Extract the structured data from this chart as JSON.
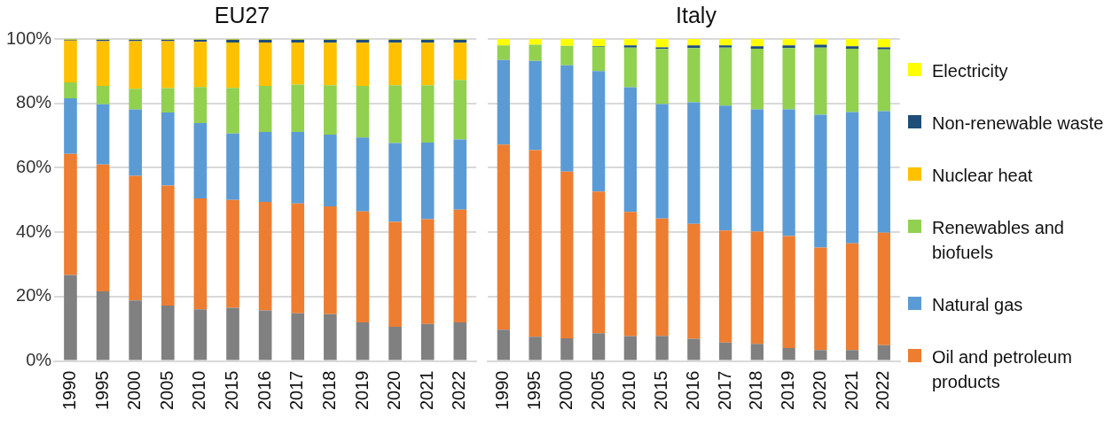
{
  "chart_data": [
    {
      "type": "bar",
      "title": "EU27",
      "stacked": true,
      "legend": false,
      "grid": "y",
      "categories": [
        "1990",
        "1995",
        "2000",
        "2005",
        "2010",
        "2015",
        "2016",
        "2017",
        "2018",
        "2019",
        "2020",
        "2021",
        "2022"
      ],
      "ylim": [
        0,
        100
      ],
      "yticks": [
        {
          "value": 0,
          "label": "0%"
        },
        {
          "value": 20,
          "label": "20%"
        },
        {
          "value": 40,
          "label": "40%"
        },
        {
          "value": 60,
          "label": "60%"
        },
        {
          "value": 80,
          "label": "80%"
        },
        {
          "value": 100,
          "label": "100%"
        }
      ],
      "series": [
        {
          "color": "#808080",
          "values": [
            26.7,
            21.6,
            18.8,
            17.2,
            16.0,
            16.5,
            15.7,
            14.8,
            14.5,
            12.0,
            10.6,
            11.5,
            12.0
          ]
        },
        {
          "color": "#ed7d31",
          "values": [
            37.6,
            39.4,
            38.7,
            37.3,
            34.5,
            33.5,
            33.7,
            34.1,
            33.5,
            34.4,
            32.6,
            32.5,
            35.0
          ]
        },
        {
          "color": "#5b9bd5",
          "values": [
            17.3,
            18.7,
            20.6,
            22.7,
            23.4,
            20.6,
            21.7,
            22.2,
            22.3,
            23.0,
            24.5,
            23.8,
            21.8
          ]
        },
        {
          "color": "#92d050",
          "values": [
            4.9,
            5.7,
            6.4,
            7.5,
            11.2,
            14.2,
            14.3,
            14.7,
            15.3,
            16.0,
            17.9,
            17.8,
            18.5
          ]
        },
        {
          "color": "#ffc000",
          "values": [
            13.0,
            13.9,
            14.8,
            14.6,
            14.0,
            14.1,
            13.5,
            13.1,
            13.2,
            13.4,
            13.2,
            13.2,
            11.5
          ]
        },
        {
          "color": "#1f4e79",
          "values": [
            0.3,
            0.5,
            0.5,
            0.5,
            0.7,
            0.9,
            0.9,
            0.9,
            1.0,
            1.0,
            1.0,
            1.0,
            1.0
          ]
        },
        {
          "color": "#ffff00",
          "values": [
            0.2,
            0.2,
            0.2,
            0.2,
            0.2,
            0.2,
            0.2,
            0.2,
            0.2,
            0.2,
            0.2,
            0.2,
            0.2
          ]
        }
      ]
    },
    {
      "type": "bar",
      "title": "Italy",
      "stacked": true,
      "legend": "right",
      "grid": "y",
      "tick_labels": "x",
      "categories": [
        "1990",
        "1995",
        "2000",
        "2005",
        "2010",
        "2015",
        "2016",
        "2017",
        "2018",
        "2019",
        "2020",
        "2021",
        "2022"
      ],
      "ylim": [
        0,
        100
      ],
      "yticks": [
        0,
        20,
        40,
        60,
        80,
        100
      ],
      "series": [
        {
          "color": "#808080",
          "values": [
            9.7,
            7.5,
            7.0,
            8.6,
            7.7,
            7.8,
            6.9,
            5.7,
            5.3,
            4.0,
            3.4,
            3.4,
            4.9
          ]
        },
        {
          "name": "Oil and petroleum products",
          "color": "#ed7d31",
          "values": [
            57.5,
            58.0,
            51.8,
            44.0,
            38.6,
            36.4,
            35.7,
            34.8,
            34.9,
            34.8,
            31.8,
            33.1,
            34.9
          ]
        },
        {
          "name": "Natural gas",
          "color": "#5b9bd5",
          "values": [
            26.3,
            27.7,
            33.0,
            37.4,
            38.7,
            35.6,
            37.7,
            38.8,
            37.9,
            39.3,
            41.3,
            40.8,
            37.8
          ]
        },
        {
          "name": "Renewables and biofuels",
          "color": "#92d050",
          "values": [
            4.5,
            5.0,
            6.1,
            7.6,
            12.3,
            17.1,
            16.9,
            18.0,
            18.9,
            19.1,
            20.8,
            19.7,
            19.2
          ]
        },
        {
          "name": "Nuclear heat",
          "color": "#ffc000",
          "values": [
            0,
            0,
            0,
            0,
            0,
            0,
            0,
            0,
            0,
            0,
            0,
            0,
            0
          ]
        },
        {
          "name": "Non-renewable waste",
          "color": "#1f4e79",
          "values": [
            0,
            0,
            0,
            0.2,
            0.7,
            0.5,
            0.8,
            0.7,
            0.7,
            0.8,
            0.9,
            0.7,
            0.6
          ]
        },
        {
          "name": "Electricity",
          "color": "#ffff00",
          "values": [
            2.0,
            1.8,
            2.1,
            2.2,
            2.0,
            2.6,
            2.0,
            2.0,
            2.3,
            2.0,
            1.8,
            2.3,
            2.6
          ]
        }
      ]
    }
  ]
}
